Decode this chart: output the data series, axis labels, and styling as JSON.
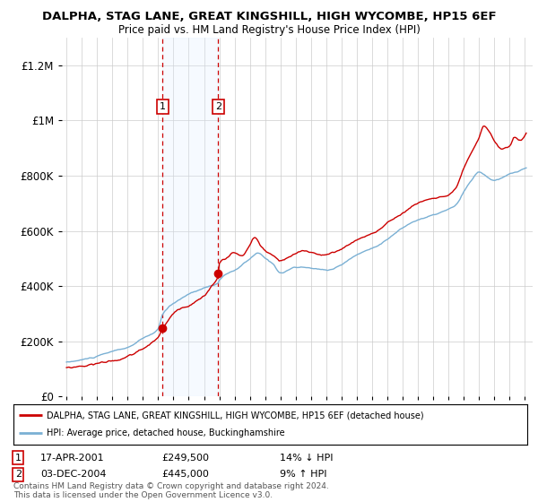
{
  "title": "DALPHA, STAG LANE, GREAT KINGSHILL, HIGH WYCOMBE, HP15 6EF",
  "subtitle": "Price paid vs. HM Land Registry's House Price Index (HPI)",
  "legend_line1": "DALPHA, STAG LANE, GREAT KINGSHILL, HIGH WYCOMBE, HP15 6EF (detached house)",
  "legend_line2": "HPI: Average price, detached house, Buckinghamshire",
  "sale1_date": "17-APR-2001",
  "sale1_price": "£249,500",
  "sale1_hpi": "14% ↓ HPI",
  "sale1_year": 2001.29,
  "sale1_value": 249500,
  "sale2_date": "03-DEC-2004",
  "sale2_price": "£445,000",
  "sale2_hpi": "9% ↑ HPI",
  "sale2_year": 2004.92,
  "sale2_value": 445000,
  "footer": "Contains HM Land Registry data © Crown copyright and database right 2024.\nThis data is licensed under the Open Government Licence v3.0.",
  "red_color": "#cc0000",
  "blue_color": "#7ab0d4",
  "shade_color": "#ddeeff",
  "background_color": "#ffffff",
  "grid_color": "#cccccc",
  "ylim_max": 1300000,
  "xlim_start": 1994.7,
  "xlim_end": 2025.5,
  "title_fontsize": 9.5,
  "subtitle_fontsize": 8.5
}
